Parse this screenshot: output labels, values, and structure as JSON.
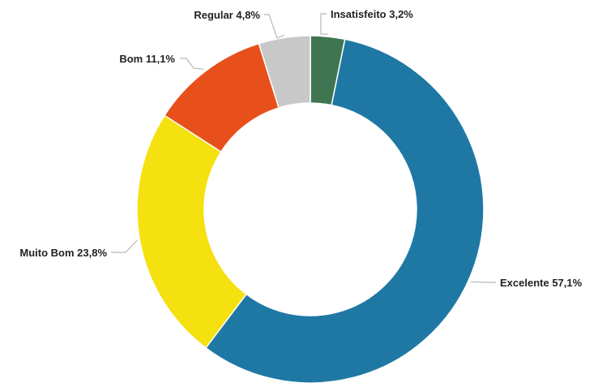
{
  "chart_data": {
    "type": "pie",
    "title": "",
    "donut": true,
    "slices": [
      {
        "name": "Insatisfeito",
        "label": "Insatisfeito 3,2%",
        "value": 3.2,
        "color": "#3f7651"
      },
      {
        "name": "Excelente",
        "label": "Excelente 57,1%",
        "value": 57.1,
        "color": "#1f78a4"
      },
      {
        "name": "Muito Bom",
        "label": "Muito Bom 23,8%",
        "value": 23.8,
        "color": "#f5e010"
      },
      {
        "name": "Bom",
        "label": "Bom 11,1%",
        "value": 11.1,
        "color": "#e8501b"
      },
      {
        "name": "Regular",
        "label": "Regular 4,8%",
        "value": 4.8,
        "color": "#c8c8c8"
      }
    ]
  }
}
